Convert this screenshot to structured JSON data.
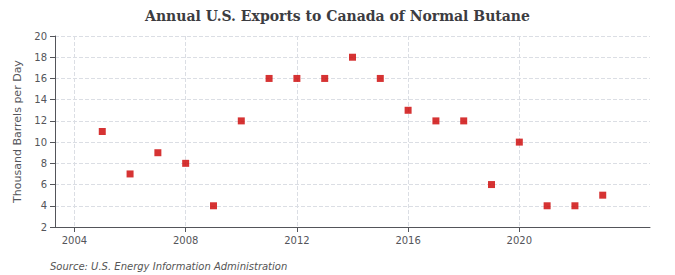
{
  "chart_data": {
    "type": "scatter",
    "title": "Annual U.S. Exports to Canada of Normal Butane",
    "ylabel": "Thousand Barrels per Day",
    "annotations": [
      "Source: U.S. Energy Information Administration"
    ],
    "x": [
      2005,
      2006,
      2007,
      2008,
      2009,
      2010,
      2011,
      2012,
      2013,
      2014,
      2015,
      2016,
      2017,
      2018,
      2019,
      2020,
      2021,
      2022,
      2023
    ],
    "values": [
      11,
      7,
      9,
      8,
      4,
      12,
      16,
      16,
      16,
      18,
      16,
      13,
      12,
      12,
      6,
      10,
      4,
      4,
      5
    ],
    "color": "#cc0000",
    "marker": "square",
    "xlim": [
      2003.3,
      2024.7
    ],
    "xticks": [
      2004,
      2008,
      2012,
      2016,
      2020
    ],
    "ylim": [
      2,
      20
    ],
    "yticks": [
      2,
      4,
      6,
      8,
      10,
      12,
      14,
      16,
      18,
      20
    ],
    "grid": true
  }
}
